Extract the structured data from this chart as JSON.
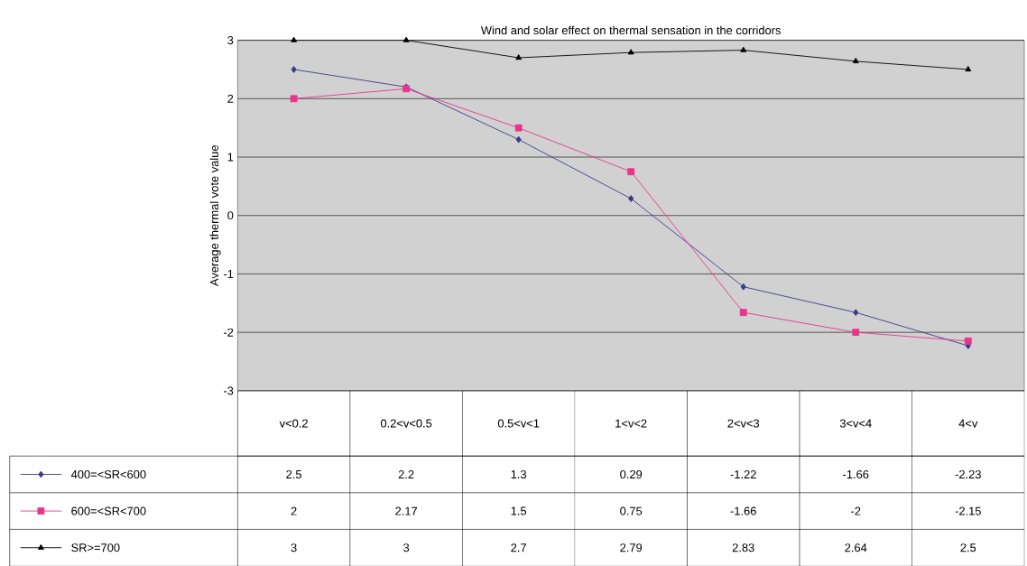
{
  "chart_data": {
    "type": "line",
    "title": "Wind and solar effect on thermal sensation in the corridors",
    "ylabel": "Average thermal vote value",
    "categories": [
      "v<0.2",
      "0.2<v<0.5",
      "0.5<v<1",
      "1<v<2",
      "2<v<3",
      "3<v<4",
      "4<v"
    ],
    "series": [
      {
        "name": "400=<SR<600",
        "color": "#3a3a8c",
        "marker": "diamond",
        "values": [
          2.5,
          2.2,
          1.3,
          0.29,
          -1.22,
          -1.66,
          -2.23
        ]
      },
      {
        "name": "600=<SR<700",
        "color": "#e8358a",
        "marker": "square",
        "values": [
          2,
          2.17,
          1.5,
          0.75,
          -1.66,
          -2,
          -2.15
        ]
      },
      {
        "name": "SR>=700",
        "color": "#000000",
        "marker": "triangle",
        "values": [
          3,
          3,
          2.7,
          2.79,
          2.83,
          2.64,
          2.5
        ]
      }
    ],
    "ylim": [
      -3,
      3
    ],
    "yticks": [
      -3,
      -2,
      -1,
      0,
      1,
      2,
      3
    ],
    "grid": "y",
    "legend": "bottom",
    "data_labels": true,
    "line_style": "solid"
  }
}
